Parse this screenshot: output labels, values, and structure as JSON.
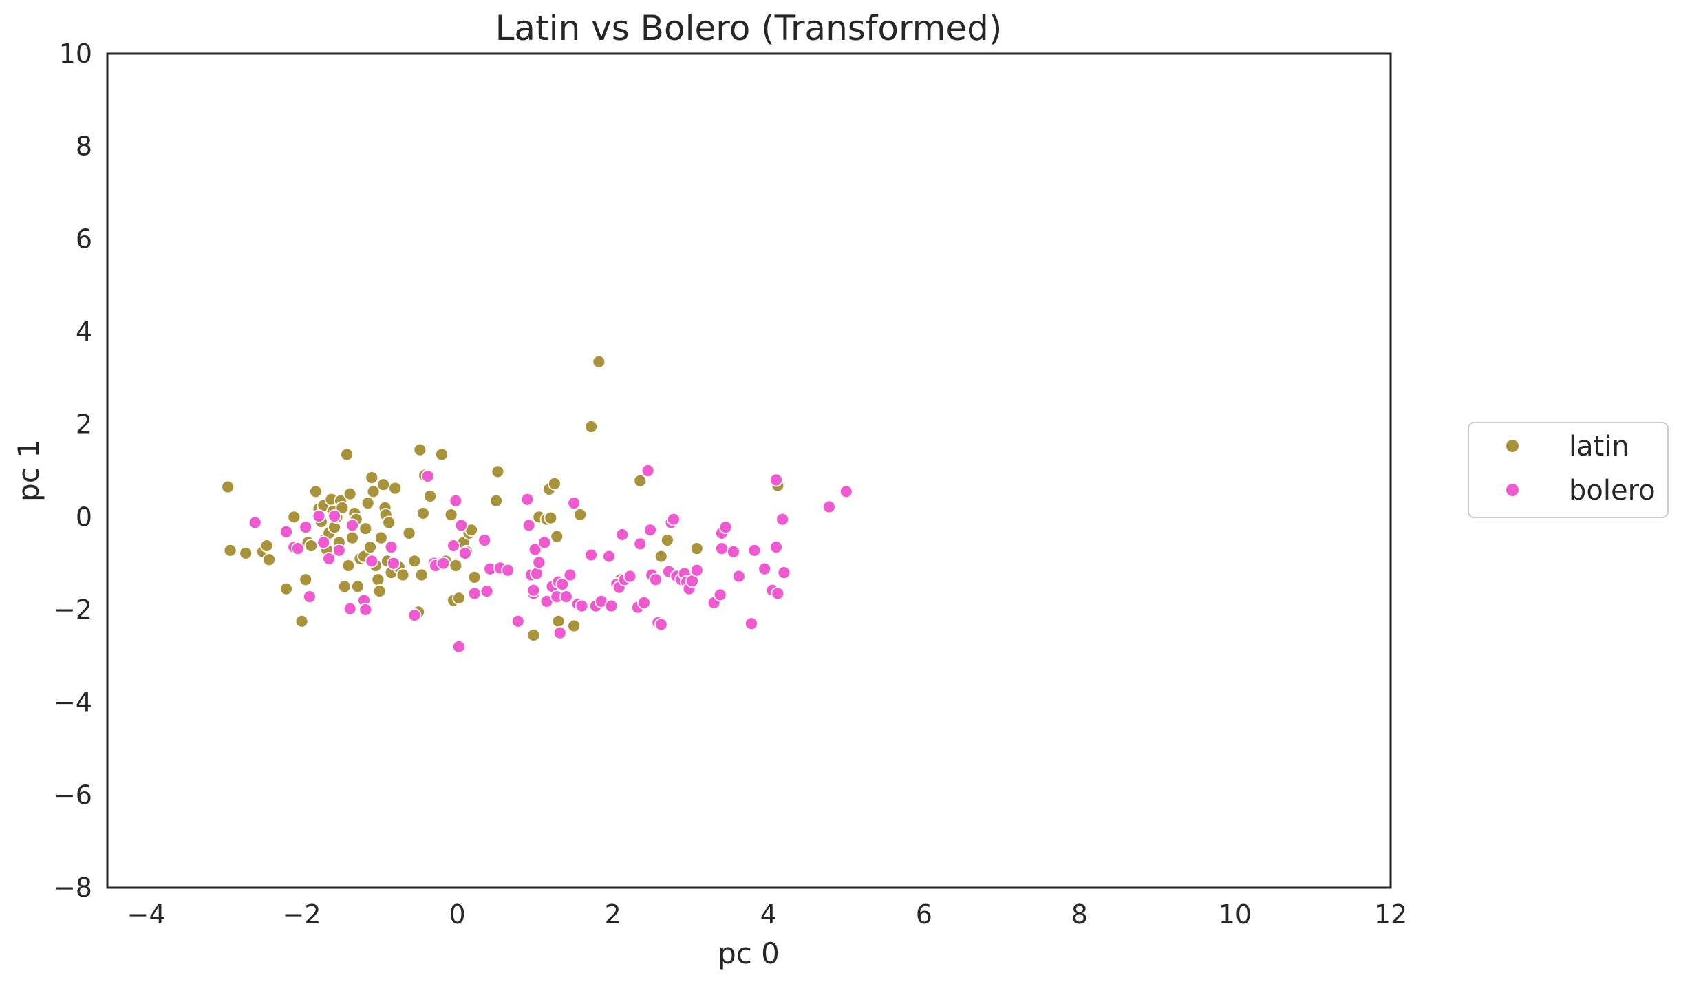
{
  "chart_data": {
    "type": "scatter",
    "title": "Latin vs Bolero (Transformed)",
    "xlabel": "pc 0",
    "ylabel": "pc 1",
    "xlim": [
      -4.5,
      12
    ],
    "ylim": [
      -8,
      10
    ],
    "xticks": [
      -4,
      -2,
      0,
      2,
      4,
      6,
      8,
      10,
      12
    ],
    "yticks": [
      -8,
      -6,
      -4,
      -2,
      0,
      2,
      4,
      6,
      8,
      10
    ],
    "grid": false,
    "legend_position": "center-right, outside plot",
    "series": [
      {
        "name": "latin",
        "color": "#a8923a",
        "points": [
          [
            -2.95,
            0.65
          ],
          [
            -2.92,
            -0.72
          ],
          [
            -2.72,
            -0.78
          ],
          [
            -2.5,
            -0.75
          ],
          [
            -2.45,
            -0.62
          ],
          [
            -2.42,
            -0.92
          ],
          [
            -2.2,
            -1.55
          ],
          [
            -2.1,
            0.0
          ],
          [
            -2.05,
            -0.65
          ],
          [
            -2.0,
            -2.25
          ],
          [
            -1.95,
            -1.35
          ],
          [
            -1.92,
            -0.55
          ],
          [
            -1.88,
            -0.62
          ],
          [
            -1.82,
            0.55
          ],
          [
            -1.78,
            0.18
          ],
          [
            -1.75,
            -0.1
          ],
          [
            -1.72,
            0.25
          ],
          [
            -1.7,
            -0.48
          ],
          [
            -1.68,
            -0.7
          ],
          [
            -1.65,
            -0.35
          ],
          [
            -1.62,
            0.38
          ],
          [
            -1.6,
            0.12
          ],
          [
            -1.58,
            -0.22
          ],
          [
            -1.55,
            0.0
          ],
          [
            -1.52,
            -0.55
          ],
          [
            -1.5,
            0.35
          ],
          [
            -1.48,
            0.2
          ],
          [
            -1.45,
            -1.5
          ],
          [
            -1.42,
            1.35
          ],
          [
            -1.4,
            -1.05
          ],
          [
            -1.38,
            0.5
          ],
          [
            -1.35,
            -0.45
          ],
          [
            -1.32,
            0.08
          ],
          [
            -1.3,
            -0.05
          ],
          [
            -1.28,
            -1.5
          ],
          [
            -1.25,
            -0.9
          ],
          [
            -1.2,
            -0.85
          ],
          [
            -1.18,
            -0.25
          ],
          [
            -1.15,
            0.3
          ],
          [
            -1.12,
            -0.65
          ],
          [
            -1.1,
            0.85
          ],
          [
            -1.08,
            0.55
          ],
          [
            -1.05,
            -1.05
          ],
          [
            -1.02,
            -1.35
          ],
          [
            -1.0,
            -1.6
          ],
          [
            -0.98,
            -0.45
          ],
          [
            -0.95,
            0.7
          ],
          [
            -0.93,
            0.2
          ],
          [
            -0.92,
            0.05
          ],
          [
            -0.9,
            -0.95
          ],
          [
            -0.88,
            -0.12
          ],
          [
            -0.85,
            -1.2
          ],
          [
            -0.8,
            0.62
          ],
          [
            -0.75,
            -1.08
          ],
          [
            -0.7,
            -1.25
          ],
          [
            -0.62,
            -0.35
          ],
          [
            -0.55,
            -0.95
          ],
          [
            -0.5,
            -2.05
          ],
          [
            -0.48,
            1.45
          ],
          [
            -0.46,
            -1.25
          ],
          [
            -0.44,
            0.08
          ],
          [
            -0.42,
            0.9
          ],
          [
            -0.35,
            0.45
          ],
          [
            -0.3,
            -1.05
          ],
          [
            -0.25,
            -1.0
          ],
          [
            -0.2,
            1.35
          ],
          [
            -0.15,
            -0.95
          ],
          [
            -0.08,
            0.05
          ],
          [
            -0.05,
            -1.8
          ],
          [
            -0.02,
            -1.05
          ],
          [
            0.02,
            -1.75
          ],
          [
            0.08,
            -0.55
          ],
          [
            0.12,
            -0.75
          ],
          [
            0.15,
            -0.35
          ],
          [
            0.18,
            -0.28
          ],
          [
            0.22,
            -1.3
          ],
          [
            0.5,
            0.35
          ],
          [
            0.52,
            0.98
          ],
          [
            0.98,
            -2.55
          ],
          [
            1.05,
            0.0
          ],
          [
            1.15,
            -0.05
          ],
          [
            1.18,
            0.6
          ],
          [
            1.2,
            -0.02
          ],
          [
            1.25,
            0.72
          ],
          [
            1.28,
            -0.42
          ],
          [
            1.3,
            -2.25
          ],
          [
            1.5,
            -2.35
          ],
          [
            1.58,
            0.05
          ],
          [
            1.72,
            1.95
          ],
          [
            1.82,
            3.35
          ],
          [
            2.1,
            -1.35
          ],
          [
            2.35,
            0.78
          ],
          [
            2.62,
            -0.85
          ],
          [
            2.7,
            -0.5
          ],
          [
            3.08,
            -0.68
          ],
          [
            4.12,
            0.68
          ]
        ]
      },
      {
        "name": "bolero",
        "color": "#f05ad0",
        "points": [
          [
            -2.6,
            -0.12
          ],
          [
            -2.2,
            -0.32
          ],
          [
            -2.1,
            -0.65
          ],
          [
            -2.05,
            -0.68
          ],
          [
            -1.95,
            -0.22
          ],
          [
            -1.9,
            -1.72
          ],
          [
            -1.78,
            0.02
          ],
          [
            -1.72,
            -0.55
          ],
          [
            -1.65,
            -0.9
          ],
          [
            -1.58,
            0.02
          ],
          [
            -1.52,
            -0.72
          ],
          [
            -1.38,
            -1.98
          ],
          [
            -1.35,
            -0.18
          ],
          [
            -1.2,
            -1.8
          ],
          [
            -1.18,
            -2.0
          ],
          [
            -1.1,
            -0.95
          ],
          [
            -0.85,
            -0.65
          ],
          [
            -0.82,
            -1.0
          ],
          [
            -0.55,
            -2.12
          ],
          [
            -0.38,
            0.88
          ],
          [
            -0.3,
            -1.0
          ],
          [
            -0.28,
            -1.05
          ],
          [
            -0.18,
            -1.0
          ],
          [
            -0.05,
            -0.62
          ],
          [
            -0.02,
            0.35
          ],
          [
            0.05,
            -0.18
          ],
          [
            0.02,
            -2.8
          ],
          [
            0.1,
            -0.78
          ],
          [
            0.22,
            -1.65
          ],
          [
            0.35,
            -0.5
          ],
          [
            0.38,
            -1.6
          ],
          [
            0.42,
            -1.12
          ],
          [
            0.55,
            -1.1
          ],
          [
            0.65,
            -1.15
          ],
          [
            0.78,
            -2.25
          ],
          [
            0.9,
            0.38
          ],
          [
            0.92,
            -0.18
          ],
          [
            0.95,
            -1.25
          ],
          [
            0.98,
            -1.65
          ],
          [
            0.98,
            -1.58
          ],
          [
            1.0,
            -0.7
          ],
          [
            1.02,
            -1.22
          ],
          [
            1.05,
            -0.98
          ],
          [
            1.12,
            -0.55
          ],
          [
            1.15,
            -1.82
          ],
          [
            1.22,
            -1.5
          ],
          [
            1.28,
            -1.72
          ],
          [
            1.3,
            -1.4
          ],
          [
            1.32,
            -2.5
          ],
          [
            1.35,
            -1.45
          ],
          [
            1.4,
            -1.72
          ],
          [
            1.45,
            -1.25
          ],
          [
            1.5,
            0.3
          ],
          [
            1.55,
            -1.88
          ],
          [
            1.6,
            -1.92
          ],
          [
            1.72,
            -0.82
          ],
          [
            1.78,
            -1.92
          ],
          [
            1.85,
            -1.82
          ],
          [
            1.95,
            -0.85
          ],
          [
            1.98,
            -1.92
          ],
          [
            2.05,
            -1.45
          ],
          [
            2.08,
            -1.52
          ],
          [
            2.12,
            -0.38
          ],
          [
            2.15,
            -1.35
          ],
          [
            2.22,
            -1.28
          ],
          [
            2.32,
            -1.95
          ],
          [
            2.35,
            -0.58
          ],
          [
            2.4,
            -1.85
          ],
          [
            2.45,
            1.0
          ],
          [
            2.48,
            -0.28
          ],
          [
            2.5,
            -1.25
          ],
          [
            2.55,
            -1.35
          ],
          [
            2.58,
            -2.28
          ],
          [
            2.62,
            -2.32
          ],
          [
            2.72,
            -1.18
          ],
          [
            2.75,
            -0.12
          ],
          [
            2.78,
            -0.05
          ],
          [
            2.82,
            -1.28
          ],
          [
            2.88,
            -1.35
          ],
          [
            2.92,
            -1.22
          ],
          [
            2.95,
            -1.4
          ],
          [
            2.98,
            -1.55
          ],
          [
            3.02,
            -1.38
          ],
          [
            3.08,
            -1.15
          ],
          [
            3.3,
            -1.85
          ],
          [
            3.38,
            -1.68
          ],
          [
            3.4,
            -0.35
          ],
          [
            3.45,
            -0.22
          ],
          [
            3.4,
            -0.68
          ],
          [
            3.55,
            -0.75
          ],
          [
            3.62,
            -1.28
          ],
          [
            3.78,
            -2.3
          ],
          [
            3.82,
            -0.72
          ],
          [
            3.95,
            -1.12
          ],
          [
            4.05,
            -1.58
          ],
          [
            4.1,
            -0.65
          ],
          [
            4.12,
            -1.65
          ],
          [
            4.1,
            0.8
          ],
          [
            4.18,
            -0.05
          ],
          [
            4.2,
            -1.2
          ],
          [
            4.78,
            0.22
          ],
          [
            5.0,
            0.55
          ]
        ]
      }
    ]
  }
}
